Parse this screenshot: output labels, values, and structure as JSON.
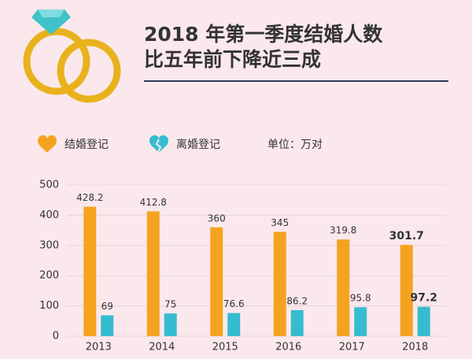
{
  "chart_data": {
    "type": "bar",
    "title": "2018 年第一季度结婚人数",
    "subtitle": "比五年前下降近三成",
    "unit": "单位：万对",
    "categories": [
      "2013",
      "2014",
      "2015",
      "2016",
      "2017",
      "2018"
    ],
    "series": [
      {
        "name": "结婚登记",
        "color": "#f5a31f",
        "values": [
          428.2,
          412.8,
          360,
          345,
          319.8,
          301.7
        ]
      },
      {
        "name": "离婚登记",
        "color": "#36bccf",
        "values": [
          69,
          75,
          76.6,
          86.2,
          95.8,
          97.2
        ]
      }
    ],
    "ylim": [
      0,
      500
    ],
    "yticks": [
      0,
      100,
      200,
      300,
      400,
      500
    ],
    "grid": true
  }
}
